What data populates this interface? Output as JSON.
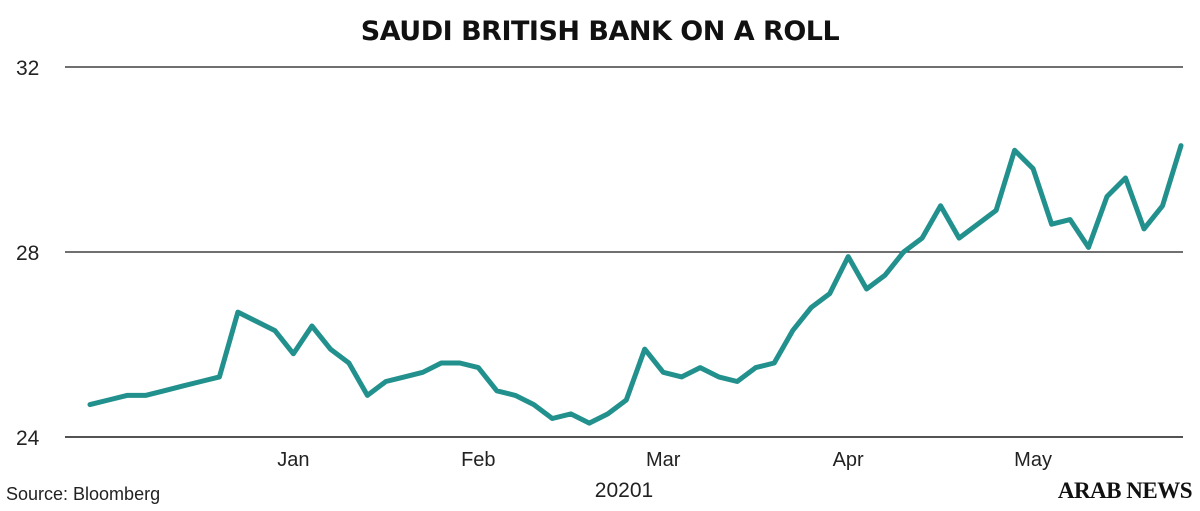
{
  "chart_data": {
    "type": "line",
    "title": "SAUDI BRITISH BANK ON A ROLL",
    "xlabel": "20201",
    "ylabel": "",
    "ylim": [
      24,
      32
    ],
    "y_ticks": [
      "24",
      "28",
      "32"
    ],
    "x_tick_labels": [
      "Jan",
      "Feb",
      "Mar",
      "Apr",
      "May"
    ],
    "x_tick_positions": [
      11,
      21,
      31,
      41,
      51
    ],
    "grid": "horizontal",
    "line_color": "#22918e",
    "series": [
      {
        "name": "",
        "x": [
          0,
          1,
          2,
          3,
          4,
          5,
          6,
          7,
          8,
          9,
          10,
          11,
          12,
          13,
          14,
          15,
          16,
          17,
          18,
          19,
          20,
          21,
          22,
          23,
          24,
          25,
          26,
          27,
          28,
          29,
          30,
          31,
          32,
          33,
          34,
          35,
          36,
          37,
          38,
          39,
          40,
          41,
          42,
          43,
          44,
          45,
          46,
          47,
          48,
          49,
          50,
          51,
          52,
          53,
          54,
          55,
          56,
          57,
          58,
          59
        ],
        "values": [
          24.7,
          24.8,
          24.9,
          24.9,
          25.0,
          25.1,
          25.2,
          25.3,
          26.7,
          26.5,
          26.3,
          25.8,
          26.4,
          25.9,
          25.6,
          24.9,
          25.2,
          25.3,
          25.4,
          25.6,
          25.6,
          25.5,
          25.0,
          24.9,
          24.7,
          24.4,
          24.5,
          24.3,
          24.5,
          24.8,
          25.9,
          25.4,
          25.3,
          25.5,
          25.3,
          25.2,
          25.5,
          25.6,
          26.3,
          26.8,
          27.1,
          27.9,
          27.2,
          27.5,
          28.0,
          28.3,
          29.0,
          28.3,
          28.6,
          28.9,
          30.2,
          29.8,
          28.6,
          28.7,
          28.1,
          29.2,
          29.6,
          28.5,
          29.0,
          30.3
        ]
      }
    ]
  },
  "footer": {
    "source": "Source: Bloomberg",
    "logo": "ARAB NEWS"
  }
}
